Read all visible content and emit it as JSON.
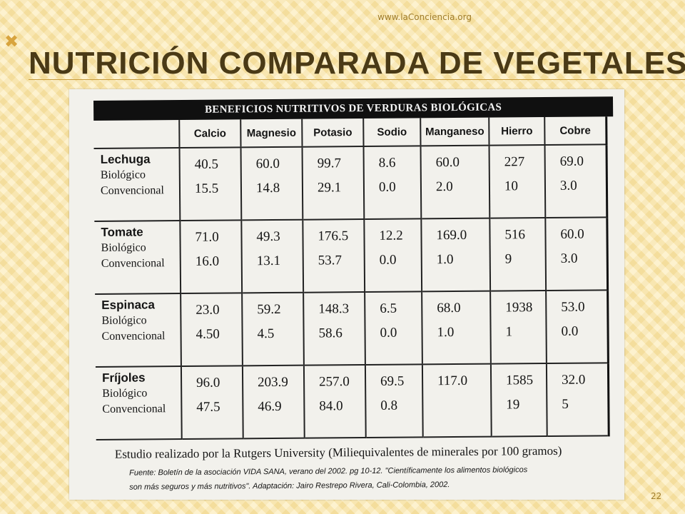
{
  "header": {
    "url": "www.laConciencia.org",
    "title": "Nutrición comparada de vegetales",
    "deco": "✖"
  },
  "table": {
    "banner": "BENEFICIOS NUTRITIVOS DE VERDURAS BIOLÓGICAS",
    "columns": [
      "Calcio",
      "Magnesio",
      "Potasio",
      "Sodio",
      "Manganeso",
      "Hierro",
      "Cobre"
    ],
    "rows": [
      {
        "name": "Lechuga",
        "sub1": "Biológico",
        "sub2": "Convencional",
        "bio": [
          "40.5",
          "60.0",
          "99.7",
          "8.6",
          "60.0",
          "227",
          "69.0"
        ],
        "conv": [
          "15.5",
          "14.8",
          "29.1",
          "0.0",
          "2.0",
          "10",
          "3.0"
        ]
      },
      {
        "name": "Tomate",
        "sub1": "Biológico",
        "sub2": "Convencional",
        "bio": [
          "71.0",
          "49.3",
          "176.5",
          "12.2",
          "169.0",
          "516",
          "60.0"
        ],
        "conv": [
          "16.0",
          "13.1",
          "53.7",
          "0.0",
          "1.0",
          "9",
          "3.0"
        ]
      },
      {
        "name": "Espinaca",
        "sub1": "Biológico",
        "sub2": "Convencional",
        "bio": [
          "23.0",
          "59.2",
          "148.3",
          "6.5",
          "68.0",
          "1938",
          "53.0"
        ],
        "conv": [
          "4.50",
          "4.5",
          "58.6",
          "0.0",
          "1.0",
          "1",
          "0.0"
        ]
      },
      {
        "name": "Fríjoles",
        "sub1": "Biológico",
        "sub2": "Convencional",
        "bio": [
          "96.0",
          "203.9",
          "257.0",
          "69.5",
          "117.0",
          "1585",
          "32.0"
        ],
        "conv": [
          "47.5",
          "46.9",
          "84.0",
          "0.8",
          "",
          "19",
          "5"
        ]
      }
    ],
    "footer": "Estudio realizado por la Rutgers University (Miliequivalentes de minerales por 100 gramos)",
    "source_line1": "Fuente: Boletín de la asociación VIDA SANA, verano del 2002. pg 10-12. \"Científicamente los alimentos biológicos",
    "source_line2": "son más seguros y más nutritivos\". Adaptación: Jairo Restrepo Rivera, Cali-Colombia, 2002."
  },
  "page_number": "22"
}
